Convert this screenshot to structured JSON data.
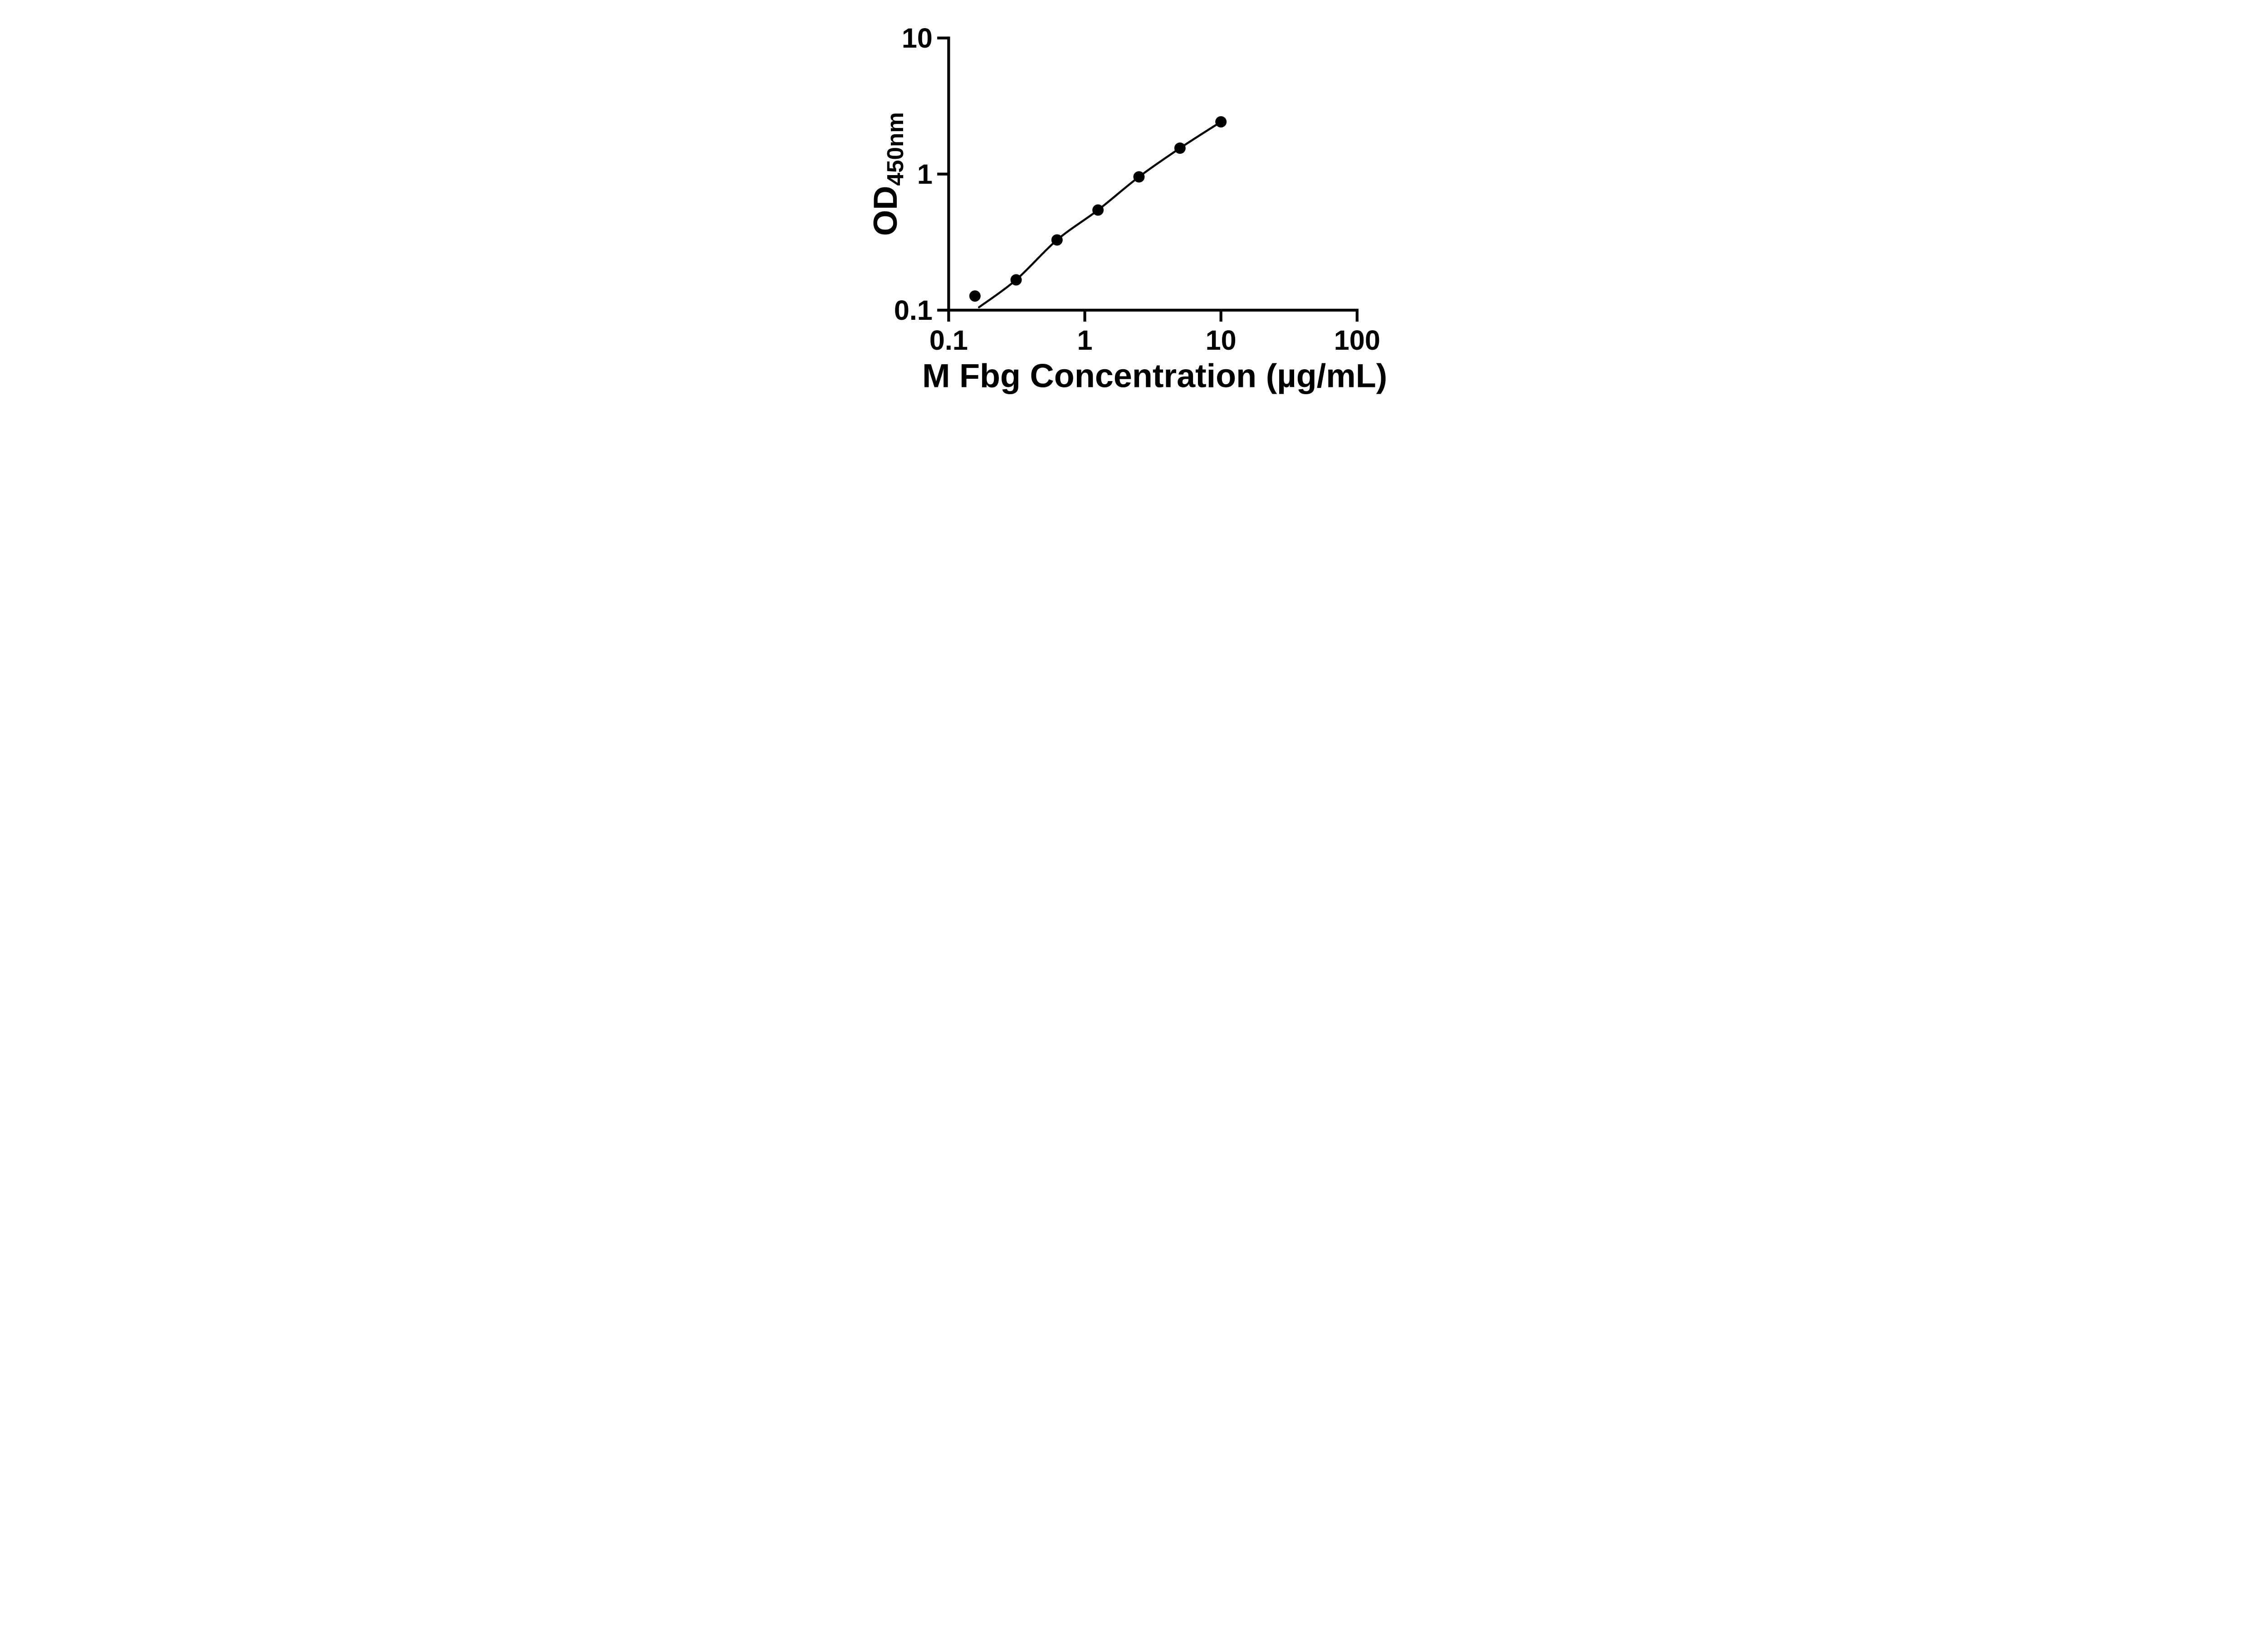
{
  "figure": {
    "background": "#ffffff",
    "foreground": "#000000"
  },
  "chart_data": {
    "type": "scatter",
    "title": "",
    "xlabel": "M Fbg Concentration (µg/mL)",
    "ylabel_main": "OD",
    "ylabel_sub": "450nm",
    "x_scale": "log",
    "y_scale": "log",
    "xlim": [
      0.1,
      100
    ],
    "ylim": [
      0.1,
      10
    ],
    "grid": false,
    "legend_position": "none",
    "x_ticks": [
      {
        "value": 0.1,
        "label": "0.1"
      },
      {
        "value": 1,
        "label": "1"
      },
      {
        "value": 10,
        "label": "10"
      },
      {
        "value": 100,
        "label": "100"
      }
    ],
    "y_ticks": [
      {
        "value": 0.1,
        "label": "0.1"
      },
      {
        "value": 1,
        "label": "1"
      },
      {
        "value": 10,
        "label": "10"
      }
    ],
    "series": [
      {
        "marker": "filled-circle",
        "color": "#000000",
        "points": [
          {
            "x": 0.156,
            "y": 0.127
          },
          {
            "x": 0.313,
            "y": 0.167
          },
          {
            "x": 0.625,
            "y": 0.328
          },
          {
            "x": 1.25,
            "y": 0.544
          },
          {
            "x": 2.5,
            "y": 0.954
          },
          {
            "x": 5,
            "y": 1.55
          },
          {
            "x": 10,
            "y": 2.42
          }
        ]
      }
    ],
    "fit_line": {
      "color": "#000000",
      "points": [
        {
          "x": 0.167,
          "y": 0.105
        },
        {
          "x": 0.313,
          "y": 0.167
        },
        {
          "x": 0.625,
          "y": 0.328
        },
        {
          "x": 1.25,
          "y": 0.544
        },
        {
          "x": 2.5,
          "y": 0.954
        },
        {
          "x": 5,
          "y": 1.55
        },
        {
          "x": 10,
          "y": 2.42
        }
      ]
    }
  }
}
